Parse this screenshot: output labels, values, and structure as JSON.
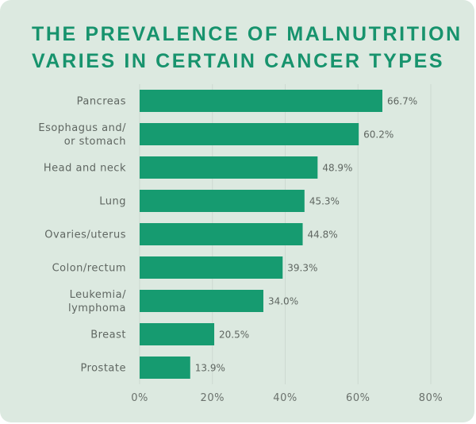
{
  "chart_data": {
    "type": "bar",
    "orientation": "horizontal",
    "title": "THE PREVALENCE OF MALNUTRITION\nVARIES IN CERTAIN CANCER TYPES",
    "categories": [
      [
        "Pancreas"
      ],
      [
        "Esophagus and/",
        "or stomach"
      ],
      [
        "Head and neck"
      ],
      [
        "Lung"
      ],
      [
        "Ovaries/uterus"
      ],
      [
        "Colon/rectum"
      ],
      [
        "Leukemia/",
        "lymphoma"
      ],
      [
        "Breast"
      ],
      [
        "Prostate"
      ]
    ],
    "values": [
      66.7,
      60.2,
      48.9,
      45.3,
      44.8,
      39.3,
      34.0,
      20.5,
      13.9
    ],
    "value_labels": [
      "66.7%",
      "60.2%",
      "48.9%",
      "45.3%",
      "44.8%",
      "39.3%",
      "34.0%",
      "20.5%",
      "13.9%"
    ],
    "xticks": [
      0,
      20,
      40,
      60,
      80
    ],
    "xtick_labels": [
      "0%",
      "20%",
      "40%",
      "60%",
      "80%"
    ],
    "xlim": [
      0,
      80
    ],
    "xlabel": "",
    "ylabel": "",
    "grid": "vertical",
    "colors": {
      "bar": "#169b70",
      "title": "#17936d",
      "background": "#dce9e0",
      "grid": "#cdd9d1"
    }
  }
}
